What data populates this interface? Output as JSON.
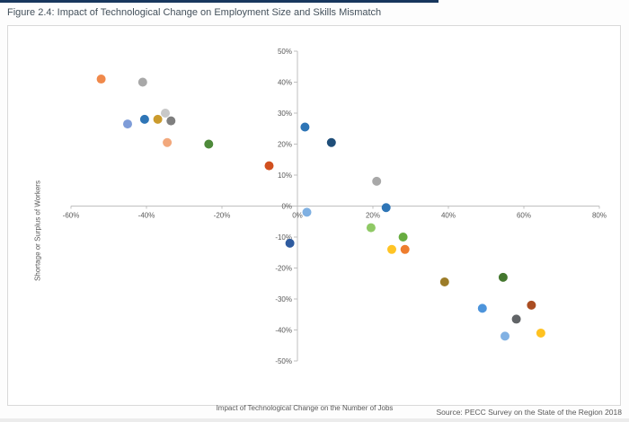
{
  "figure": {
    "title": "Figure 2.4: Impact of Technological Change on Employment Size and Skills Mismatch",
    "source": "Source: PECC Survey on the State of the Region 2018"
  },
  "colors": {
    "top_accent": "#17365D",
    "panel_border": "#D9D9D9",
    "axis_line": "#BFBFBF",
    "tick_text": "#595959"
  },
  "chart_data": {
    "type": "scatter",
    "title": "",
    "xlabel": "Impact of Technological Change on the Number of Jobs",
    "ylabel": "Shortage or Surplus of Workers",
    "xlim": [
      -60,
      80
    ],
    "ylim": [
      -50,
      50
    ],
    "x_tick_step": 20,
    "y_tick_step": 10,
    "x_ticks": [
      "-60%",
      "-40%",
      "-20%",
      "0%",
      "20%",
      "40%",
      "60%",
      "80%"
    ],
    "y_ticks": [
      "50%",
      "40%",
      "30%",
      "20%",
      "10%",
      "0%",
      "-10%",
      "-20%",
      "-30%",
      "-40%",
      "-50%"
    ],
    "grid": false,
    "legend": "none",
    "points": [
      {
        "x": -52,
        "y": 41,
        "color": "#F0894B"
      },
      {
        "x": -41,
        "y": 40,
        "color": "#A8A8A8"
      },
      {
        "x": -45,
        "y": 26.5,
        "color": "#7E9CD8"
      },
      {
        "x": -40.5,
        "y": 28,
        "color": "#2E75B6"
      },
      {
        "x": -37,
        "y": 28,
        "color": "#CB9B2D"
      },
      {
        "x": -35,
        "y": 30,
        "color": "#C8C8C8"
      },
      {
        "x": -33.5,
        "y": 27.5,
        "color": "#7F7F7F"
      },
      {
        "x": -34.5,
        "y": 20.5,
        "color": "#F2A87C"
      },
      {
        "x": -23.5,
        "y": 20,
        "color": "#4E8A3A"
      },
      {
        "x": -7.5,
        "y": 13,
        "color": "#D1501F"
      },
      {
        "x": 2,
        "y": 25.5,
        "color": "#2E75B6"
      },
      {
        "x": 9,
        "y": 20.5,
        "color": "#1F4E79"
      },
      {
        "x": 21,
        "y": 8,
        "color": "#A8A8A8"
      },
      {
        "x": 23.5,
        "y": -0.5,
        "color": "#2E75B6"
      },
      {
        "x": 2.5,
        "y": -2,
        "color": "#7FB0E2"
      },
      {
        "x": 19.5,
        "y": -7,
        "color": "#8FC965"
      },
      {
        "x": -2,
        "y": -12,
        "color": "#2E5B9F"
      },
      {
        "x": 28,
        "y": -10,
        "color": "#68AC40"
      },
      {
        "x": 25,
        "y": -14,
        "color": "#FFC425"
      },
      {
        "x": 28.5,
        "y": -14,
        "color": "#EE7D2E"
      },
      {
        "x": 39,
        "y": -24.5,
        "color": "#9C7C28"
      },
      {
        "x": 54.5,
        "y": -23,
        "color": "#44772E"
      },
      {
        "x": 49,
        "y": -33,
        "color": "#4D94DB"
      },
      {
        "x": 62,
        "y": -32,
        "color": "#AA4D22"
      },
      {
        "x": 58,
        "y": -36.5,
        "color": "#616467"
      },
      {
        "x": 55,
        "y": -42,
        "color": "#81B1E3"
      },
      {
        "x": 64.5,
        "y": -41,
        "color": "#FFC221"
      }
    ]
  }
}
